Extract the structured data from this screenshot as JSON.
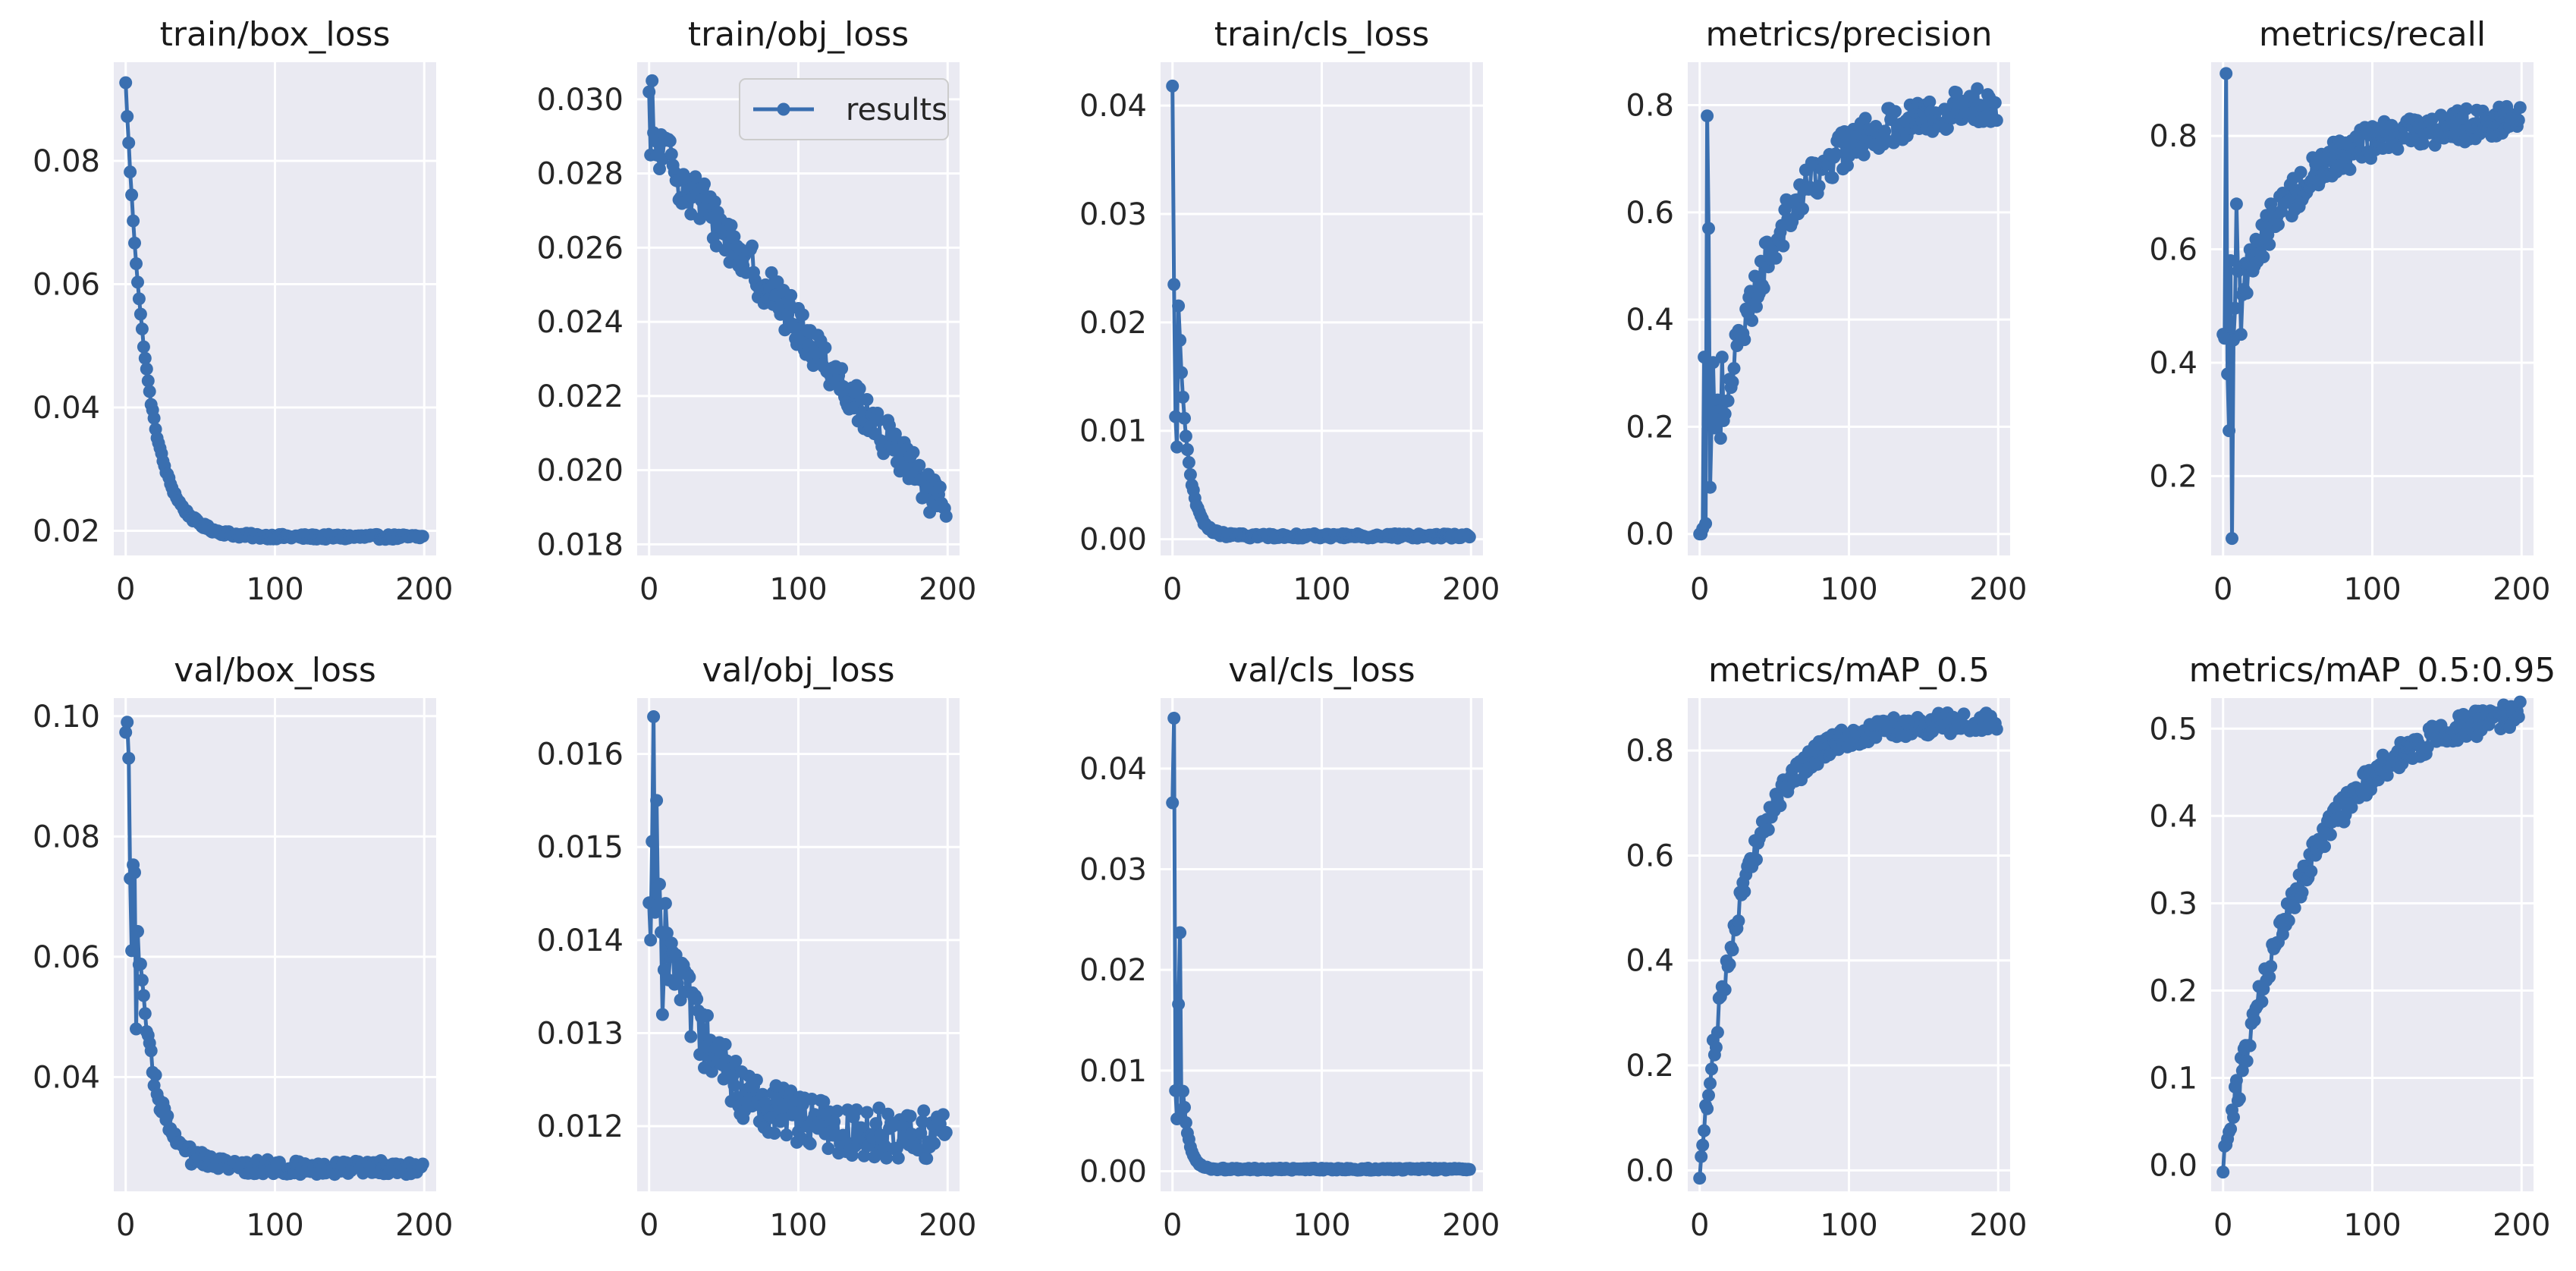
{
  "figure": {
    "series_color": "#3a6fb0",
    "background": "#eaeaf2",
    "grid_color": "#ffffff"
  },
  "legend": {
    "label": "results"
  },
  "chart_data": [
    {
      "type": "line",
      "title": "train/box_loss",
      "xlim": [
        -8,
        208
      ],
      "ylim": [
        0.016,
        0.096
      ],
      "xticks": [
        0,
        100,
        200
      ],
      "yticks": [
        0.02,
        0.04,
        0.06,
        0.08
      ],
      "ytick_decimals": 2,
      "curve": "decay",
      "start": 0.0925,
      "end": 0.019,
      "rate": 14,
      "noise": 0.0004,
      "pattern": "smooth"
    },
    {
      "type": "line",
      "title": "train/obj_loss",
      "xlim": [
        -8,
        208
      ],
      "ylim": [
        0.0177,
        0.031
      ],
      "xticks": [
        0,
        100,
        200
      ],
      "yticks": [
        0.018,
        0.02,
        0.022,
        0.024,
        0.026,
        0.028,
        0.03
      ],
      "ytick_decimals": 3,
      "curve": "linear-decay",
      "start": 0.029,
      "end": 0.0188,
      "noise": 0.00055,
      "pattern": "noisy",
      "legend": true
    },
    {
      "type": "line",
      "title": "train/cls_loss",
      "xlim": [
        -8,
        208
      ],
      "ylim": [
        -0.0015,
        0.044
      ],
      "xticks": [
        0,
        100,
        200
      ],
      "yticks": [
        0.0,
        0.01,
        0.02,
        0.03,
        0.04
      ],
      "ytick_decimals": 2,
      "curve": "decay",
      "start": 0.0418,
      "end": 0.0003,
      "rate": 6,
      "noise": 0.0002,
      "pattern": "smooth"
    },
    {
      "type": "line",
      "title": "metrics/precision",
      "xlim": [
        -8,
        208
      ],
      "ylim": [
        -0.04,
        0.88
      ],
      "xticks": [
        0,
        100,
        200
      ],
      "yticks": [
        0.0,
        0.2,
        0.4,
        0.6,
        0.8
      ],
      "ytick_decimals": 1,
      "curve": "growth",
      "start": 0.0,
      "end": 0.81,
      "rate": 45,
      "noise": 0.035,
      "pattern": "noisy"
    },
    {
      "type": "line",
      "title": "metrics/recall",
      "xlim": [
        -8,
        208
      ],
      "ylim": [
        0.06,
        0.93
      ],
      "xticks": [
        0,
        100,
        200
      ],
      "yticks": [
        0.2,
        0.4,
        0.6,
        0.8
      ],
      "ytick_decimals": 1,
      "curve": "growth",
      "start": 0.45,
      "end": 0.83,
      "rate": 45,
      "noise": 0.03,
      "pattern": "noisy"
    },
    {
      "type": "line",
      "title": "val/box_loss",
      "xlim": [
        -8,
        208
      ],
      "ylim": [
        0.021,
        0.103
      ],
      "xticks": [
        0,
        100,
        200
      ],
      "yticks": [
        0.04,
        0.06,
        0.08,
        0.1
      ],
      "ytick_decimals": 2,
      "curve": "decay",
      "start": 0.099,
      "end": 0.025,
      "rate": 12,
      "noise": 0.0012,
      "pattern": "noisy"
    },
    {
      "type": "line",
      "title": "val/obj_loss",
      "xlim": [
        -8,
        208
      ],
      "ylim": [
        0.0113,
        0.0166
      ],
      "xticks": [
        0,
        100,
        200
      ],
      "yticks": [
        0.012,
        0.013,
        0.014,
        0.015,
        0.016
      ],
      "ytick_decimals": 3,
      "curve": "decay",
      "start": 0.0148,
      "end": 0.0119,
      "rate": 35,
      "noise": 0.00028,
      "pattern": "noisy"
    },
    {
      "type": "line",
      "title": "val/cls_loss",
      "xlim": [
        -8,
        208
      ],
      "ylim": [
        -0.002,
        0.047
      ],
      "xticks": [
        0,
        100,
        200
      ],
      "yticks": [
        0.0,
        0.01,
        0.02,
        0.03,
        0.04
      ],
      "ytick_decimals": 2,
      "curve": "decay",
      "start": 0.045,
      "end": 0.0002,
      "rate": 4,
      "noise": 0.0001,
      "pattern": "smooth"
    },
    {
      "type": "line",
      "title": "metrics/mAP_0.5",
      "xlim": [
        -8,
        208
      ],
      "ylim": [
        -0.04,
        0.9
      ],
      "xticks": [
        0,
        100,
        200
      ],
      "yticks": [
        0.0,
        0.2,
        0.4,
        0.6,
        0.8
      ],
      "ytick_decimals": 1,
      "curve": "growth",
      "start": 0.0,
      "end": 0.855,
      "rate": 30,
      "noise": 0.02,
      "pattern": "noisy"
    },
    {
      "type": "line",
      "title": "metrics/mAP_0.5:0.95",
      "xlim": [
        -8,
        208
      ],
      "ylim": [
        -0.03,
        0.535
      ],
      "xticks": [
        0,
        100,
        200
      ],
      "yticks": [
        0.0,
        0.1,
        0.2,
        0.3,
        0.4,
        0.5
      ],
      "ytick_decimals": 1,
      "curve": "growth",
      "start": 0.0,
      "end": 0.53,
      "rate": 55,
      "noise": 0.015,
      "pattern": "noisy"
    }
  ]
}
